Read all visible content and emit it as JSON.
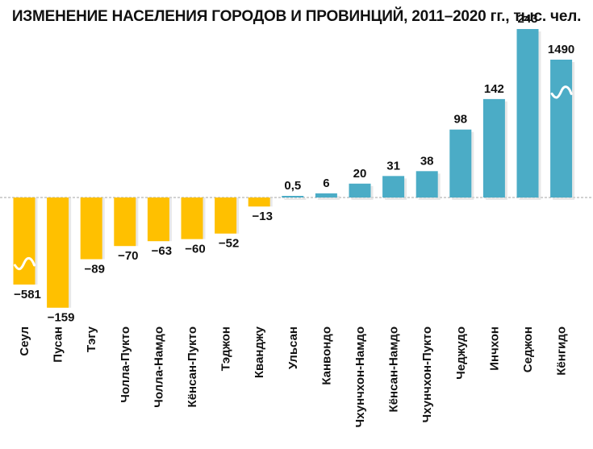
{
  "chart_data": {
    "type": "bar",
    "title": "ИЗМЕНЕНИЕ НАСЕЛЕНИЯ ГОРОДОВ И ПРОВИНЦИЙ, 2011–2020 гг., тыс. чел.",
    "categories": [
      "Сеул",
      "Пусан",
      "Тэгу",
      "Чолла-Пукто",
      "Чолла-Намдо",
      "Кёнсан-Пукто",
      "Тэджон",
      "Кванджу",
      "Ульсан",
      "Канвондо",
      "Чхунчхон-Намдо",
      "Кёнсан-Намдо",
      "Чхунчхон-Пукто",
      "Чеджудо",
      "Инчхон",
      "Седжон",
      "Кёнгидо"
    ],
    "values": [
      -581,
      -159,
      -89,
      -70,
      -63,
      -60,
      -52,
      -13,
      0.5,
      6,
      20,
      31,
      38,
      98,
      142,
      243,
      1490
    ],
    "value_labels": [
      "−581",
      "−159",
      "−89",
      "−70",
      "−63",
      "−60",
      "−52",
      "−13",
      "0,5",
      "6",
      "20",
      "31",
      "38",
      "98",
      "142",
      "243",
      "1490"
    ],
    "truncated_bars": [
      "Сеул",
      "Кёнгидо"
    ],
    "colors": {
      "negative": "#FFC000",
      "positive": "#4BACC6",
      "zero_line": "#A6A6A6",
      "break_mark": "#FFFFFF"
    },
    "xlabel": "",
    "ylabel": "",
    "grid": false,
    "legend": "none"
  }
}
